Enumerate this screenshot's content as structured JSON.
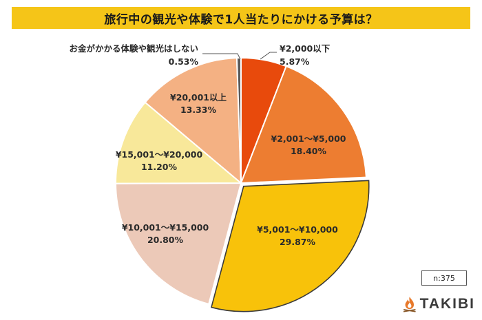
{
  "header": {
    "title": "旅行中の観光や体験で1人当たりにかける予算は？"
  },
  "sample": {
    "label": "n:375"
  },
  "brand": {
    "name": "TAKIBI",
    "icon": "campfire-icon",
    "flame_color": "#e8792a"
  },
  "chart_data": {
    "type": "pie",
    "title": "旅行中の観光や体験で1人当たりにかける予算は？",
    "slices": [
      {
        "label": "¥2,000以下",
        "value": 5.87,
        "display": "5.87%",
        "color": "#e84a0c"
      },
      {
        "label": "¥2,001～¥5,000",
        "value": 18.4,
        "display": "18.40%",
        "color": "#ed7d31"
      },
      {
        "label": "¥5,001～¥10,000",
        "value": 29.87,
        "display": "29.87%",
        "color": "#f8c20a"
      },
      {
        "label": "¥10,001～¥15,000",
        "value": 20.8,
        "display": "20.80%",
        "color": "#ecc9b8"
      },
      {
        "label": "¥15,001～¥20,000",
        "value": 11.2,
        "display": "11.20%",
        "color": "#f8e89a"
      },
      {
        "label": "¥20,001以上",
        "value": 13.33,
        "display": "13.33%",
        "color": "#f4b183"
      },
      {
        "label": "お金がかかる体験や観光はしない",
        "value": 0.53,
        "display": "0.53%",
        "color": "#5a5a5a"
      }
    ],
    "start": "12 o'clock",
    "direction": "clockwise",
    "highlighted": "¥5,001～¥10,000",
    "legend": "none (labels on slices)",
    "sample_size": "n:375"
  }
}
